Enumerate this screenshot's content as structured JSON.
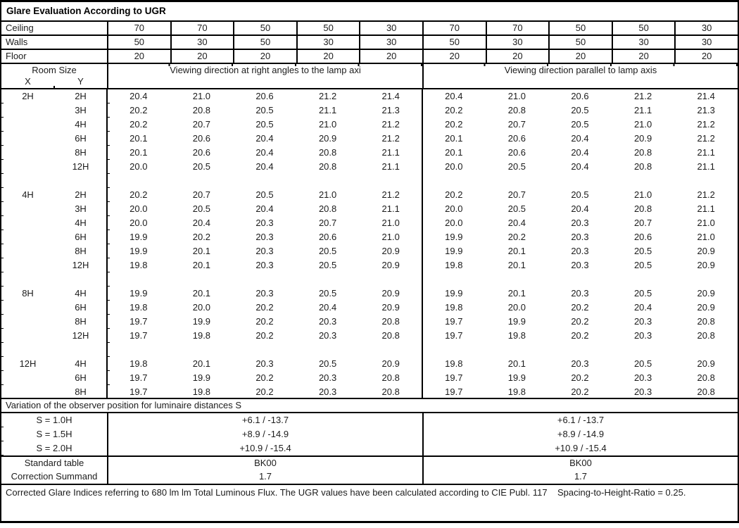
{
  "title": "Glare Evaluation According to UGR",
  "surfaces": [
    {
      "label": "Ceiling",
      "values": [
        "70",
        "70",
        "50",
        "50",
        "30",
        "70",
        "70",
        "50",
        "50",
        "30"
      ]
    },
    {
      "label": "Walls",
      "values": [
        "50",
        "30",
        "50",
        "30",
        "30",
        "50",
        "30",
        "50",
        "30",
        "30"
      ]
    },
    {
      "label": "Floor",
      "values": [
        "20",
        "20",
        "20",
        "20",
        "20",
        "20",
        "20",
        "20",
        "20",
        "20"
      ]
    }
  ],
  "room_size": {
    "label": "Room Size",
    "x": "X",
    "y": "Y"
  },
  "sections": {
    "left": "Viewing direction at right angles to the lamp axi",
    "right": "Viewing direction parallel to lamp axis"
  },
  "chart_data": {
    "type": "table",
    "title": "Glare Evaluation According to UGR",
    "column_groups": [
      "Viewing direction at right angles to the lamp axi",
      "Viewing direction parallel to lamp axis"
    ],
    "blocks": [
      {
        "x": "2H",
        "rows": [
          {
            "y": "2H",
            "values": [
              "20.4",
              "21.0",
              "20.6",
              "21.2",
              "21.4",
              "20.4",
              "21.0",
              "20.6",
              "21.2",
              "21.4"
            ]
          },
          {
            "y": "3H",
            "values": [
              "20.2",
              "20.8",
              "20.5",
              "21.1",
              "21.3",
              "20.2",
              "20.8",
              "20.5",
              "21.1",
              "21.3"
            ]
          },
          {
            "y": "4H",
            "values": [
              "20.2",
              "20.7",
              "20.5",
              "21.0",
              "21.2",
              "20.2",
              "20.7",
              "20.5",
              "21.0",
              "21.2"
            ]
          },
          {
            "y": "6H",
            "values": [
              "20.1",
              "20.6",
              "20.4",
              "20.9",
              "21.2",
              "20.1",
              "20.6",
              "20.4",
              "20.9",
              "21.2"
            ]
          },
          {
            "y": "8H",
            "values": [
              "20.1",
              "20.6",
              "20.4",
              "20.8",
              "21.1",
              "20.1",
              "20.6",
              "20.4",
              "20.8",
              "21.1"
            ]
          },
          {
            "y": "12H",
            "values": [
              "20.0",
              "20.5",
              "20.4",
              "20.8",
              "21.1",
              "20.0",
              "20.5",
              "20.4",
              "20.8",
              "21.1"
            ]
          }
        ]
      },
      {
        "x": "4H",
        "rows": [
          {
            "y": "2H",
            "values": [
              "20.2",
              "20.7",
              "20.5",
              "21.0",
              "21.2",
              "20.2",
              "20.7",
              "20.5",
              "21.0",
              "21.2"
            ]
          },
          {
            "y": "3H",
            "values": [
              "20.0",
              "20.5",
              "20.4",
              "20.8",
              "21.1",
              "20.0",
              "20.5",
              "20.4",
              "20.8",
              "21.1"
            ]
          },
          {
            "y": "4H",
            "values": [
              "20.0",
              "20.4",
              "20.3",
              "20.7",
              "21.0",
              "20.0",
              "20.4",
              "20.3",
              "20.7",
              "21.0"
            ]
          },
          {
            "y": "6H",
            "values": [
              "19.9",
              "20.2",
              "20.3",
              "20.6",
              "21.0",
              "19.9",
              "20.2",
              "20.3",
              "20.6",
              "21.0"
            ]
          },
          {
            "y": "8H",
            "values": [
              "19.9",
              "20.1",
              "20.3",
              "20.5",
              "20.9",
              "19.9",
              "20.1",
              "20.3",
              "20.5",
              "20.9"
            ]
          },
          {
            "y": "12H",
            "values": [
              "19.8",
              "20.1",
              "20.3",
              "20.5",
              "20.9",
              "19.8",
              "20.1",
              "20.3",
              "20.5",
              "20.9"
            ]
          }
        ]
      },
      {
        "x": "8H",
        "rows": [
          {
            "y": "4H",
            "values": [
              "19.9",
              "20.1",
              "20.3",
              "20.5",
              "20.9",
              "19.9",
              "20.1",
              "20.3",
              "20.5",
              "20.9"
            ]
          },
          {
            "y": "6H",
            "values": [
              "19.8",
              "20.0",
              "20.2",
              "20.4",
              "20.9",
              "19.8",
              "20.0",
              "20.2",
              "20.4",
              "20.9"
            ]
          },
          {
            "y": "8H",
            "values": [
              "19.7",
              "19.9",
              "20.2",
              "20.3",
              "20.8",
              "19.7",
              "19.9",
              "20.2",
              "20.3",
              "20.8"
            ]
          },
          {
            "y": "12H",
            "values": [
              "19.7",
              "19.8",
              "20.2",
              "20.3",
              "20.8",
              "19.7",
              "19.8",
              "20.2",
              "20.3",
              "20.8"
            ]
          }
        ]
      },
      {
        "x": "12H",
        "rows": [
          {
            "y": "4H",
            "values": [
              "19.8",
              "20.1",
              "20.3",
              "20.5",
              "20.9",
              "19.8",
              "20.1",
              "20.3",
              "20.5",
              "20.9"
            ]
          },
          {
            "y": "6H",
            "values": [
              "19.7",
              "19.9",
              "20.2",
              "20.3",
              "20.8",
              "19.7",
              "19.9",
              "20.2",
              "20.3",
              "20.8"
            ]
          },
          {
            "y": "8H",
            "values": [
              "19.7",
              "19.8",
              "20.2",
              "20.3",
              "20.8",
              "19.7",
              "19.8",
              "20.2",
              "20.3",
              "20.8"
            ]
          }
        ]
      }
    ]
  },
  "variation": {
    "heading": "Variation of the observer position for luminaire distances S",
    "rows": [
      {
        "label": "S = 1.0H",
        "left": "+6.1 / -13.7",
        "right": "+6.1 / -13.7"
      },
      {
        "label": "S = 1.5H",
        "left": "+8.9 / -14.9",
        "right": "+8.9 / -14.9"
      },
      {
        "label": "S = 2.0H",
        "left": "+10.9 / -15.4",
        "right": "+10.9 / -15.4"
      }
    ]
  },
  "summary": {
    "rows": [
      {
        "label": "Standard table",
        "left": "BK00",
        "right": "BK00"
      },
      {
        "label": "Correction Summand",
        "left": "1.7",
        "right": "1.7"
      }
    ]
  },
  "footer": "Corrected Glare Indices referring to 680 lm lm Total Luminous Flux. The UGR values have been calculated according to CIE Publ. 117    Spacing-to-Height-Ratio = 0.25."
}
